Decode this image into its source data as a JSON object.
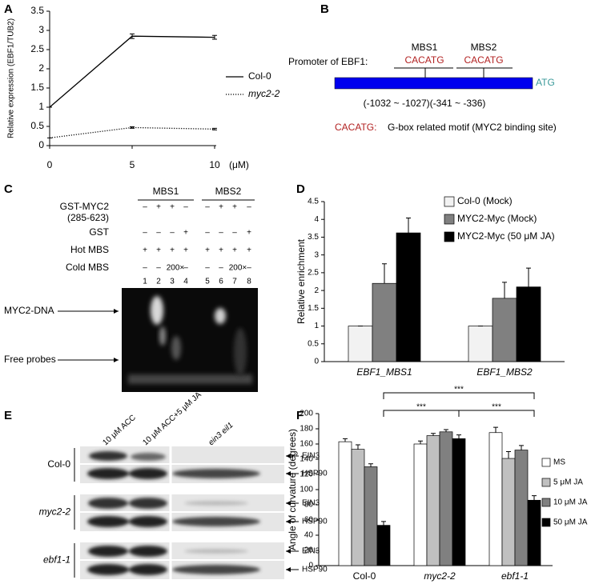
{
  "chart_data": [
    {
      "type": "line",
      "panel": "A",
      "ylabel": "Relative expression (EBF1/TUB2)",
      "xunit": "(μM)",
      "x": [
        0,
        5,
        10
      ],
      "xlim": [
        0,
        10
      ],
      "xticks": [
        0,
        5,
        10
      ],
      "ylim": [
        0,
        3.5
      ],
      "yticks": [
        0,
        0.5,
        1,
        1.5,
        2,
        2.5,
        3,
        3.5
      ],
      "series": [
        {
          "name": "Col-0",
          "color": "#000000",
          "dash": "solid",
          "font_style": "normal",
          "values": [
            1.0,
            2.85,
            2.82
          ],
          "errors": [
            0,
            0.06,
            0.05
          ]
        },
        {
          "name": "myc2-2",
          "color": "#000000",
          "dash": "dotted",
          "font_style": "italic",
          "values": [
            0.2,
            0.47,
            0.43
          ],
          "errors": [
            0,
            0.02,
            0.02
          ]
        }
      ]
    },
    {
      "type": "bar",
      "panel": "D",
      "ylabel": "Relative enrichment",
      "categories": [
        "EBF1_MBS1",
        "EBF1_MBS2"
      ],
      "ylim": [
        0,
        4.5
      ],
      "yticks": [
        0,
        0.5,
        1,
        1.5,
        2,
        2.5,
        3,
        3.5,
        4,
        4.5
      ],
      "series": [
        {
          "name": "Col-0 (Mock)",
          "color": "#f2f2f2",
          "values": [
            1,
            1
          ],
          "errors": [
            0,
            0
          ]
        },
        {
          "name": "MYC2-Myc (Mock)",
          "color": "#808080",
          "values": [
            2.2,
            1.78
          ],
          "errors": [
            0.55,
            0.45
          ]
        },
        {
          "name": "MYC2-Myc (50 μM JA)",
          "color": "#000000",
          "values": [
            3.62,
            2.1
          ],
          "errors": [
            0.42,
            0.53
          ]
        }
      ]
    },
    {
      "type": "bar",
      "panel": "F",
      "ylabel": "Angle of curvature (degrees)",
      "categories": [
        "Col-0",
        "myc2-2",
        "ebf1-1"
      ],
      "ylim": [
        0,
        200
      ],
      "yticks": [
        0,
        20,
        40,
        60,
        80,
        100,
        120,
        140,
        160,
        180,
        200
      ],
      "annotations": [
        "***",
        "***",
        "***"
      ],
      "series": [
        {
          "name": "MS",
          "color": "#ffffff",
          "values": [
            163,
            160,
            175
          ],
          "errors": [
            4,
            4,
            7
          ]
        },
        {
          "name": "5 μM JA",
          "color": "#c0c0c0",
          "values": [
            153,
            171,
            141
          ],
          "errors": [
            6,
            3,
            9
          ]
        },
        {
          "name": "10 μM JA",
          "color": "#808080",
          "values": [
            130,
            176,
            152
          ],
          "errors": [
            4,
            3,
            6
          ]
        },
        {
          "name": "50 μM JA",
          "color": "#000000",
          "values": [
            53,
            167,
            86
          ],
          "errors": [
            5,
            5,
            6
          ]
        }
      ]
    }
  ],
  "panel_b": {
    "panel": "B",
    "promoter": "Promoter of EBF1:",
    "sites": [
      "MBS1",
      "MBS2"
    ],
    "motifs": [
      "CACATG",
      "CACATG"
    ],
    "start": "ATG",
    "positions": "(-1032 ~ -1027)(-341 ~ -336)",
    "legend_motif": "CACATG:",
    "legend_text": "G-box related motif (MYC2 binding site)"
  },
  "panel_c": {
    "panel": "C",
    "groups": [
      "MBS1",
      "MBS2"
    ],
    "rows": [
      {
        "label": "GST-MYC2",
        "sublabel": "(285-623)",
        "cells": [
          "–",
          "+",
          "+",
          "–",
          "–",
          "+",
          "+",
          "–"
        ]
      },
      {
        "label": "GST",
        "cells": [
          "–",
          "–",
          "–",
          "+",
          "–",
          "–",
          "–",
          "+"
        ]
      },
      {
        "label": "Hot MBS",
        "cells": [
          "+",
          "+",
          "+",
          "+",
          "+",
          "+",
          "+",
          "+"
        ]
      },
      {
        "label": "Cold MBS",
        "cells": [
          "–",
          "–",
          "200×",
          "–",
          "–",
          "–",
          "200×",
          "–"
        ]
      }
    ],
    "lanes": [
      "1",
      "2",
      "3",
      "4",
      "5",
      "6",
      "7",
      "8"
    ],
    "bands": [
      "MYC2-DNA",
      "Free probes"
    ]
  },
  "panel_e": {
    "panel": "E",
    "columns": [
      "10 μM ACC",
      "10 μM ACC+5 μM JA",
      "ein3 eil1"
    ],
    "rows": [
      {
        "genotype": "Col-0",
        "bands": [
          "EIN3",
          "HSP90"
        ]
      },
      {
        "genotype": "myc2-2",
        "bands": [
          "EIN3",
          "HSP90"
        ]
      },
      {
        "genotype": "ebf1-1",
        "bands": [
          "EIN3",
          "HSP90"
        ]
      }
    ]
  }
}
